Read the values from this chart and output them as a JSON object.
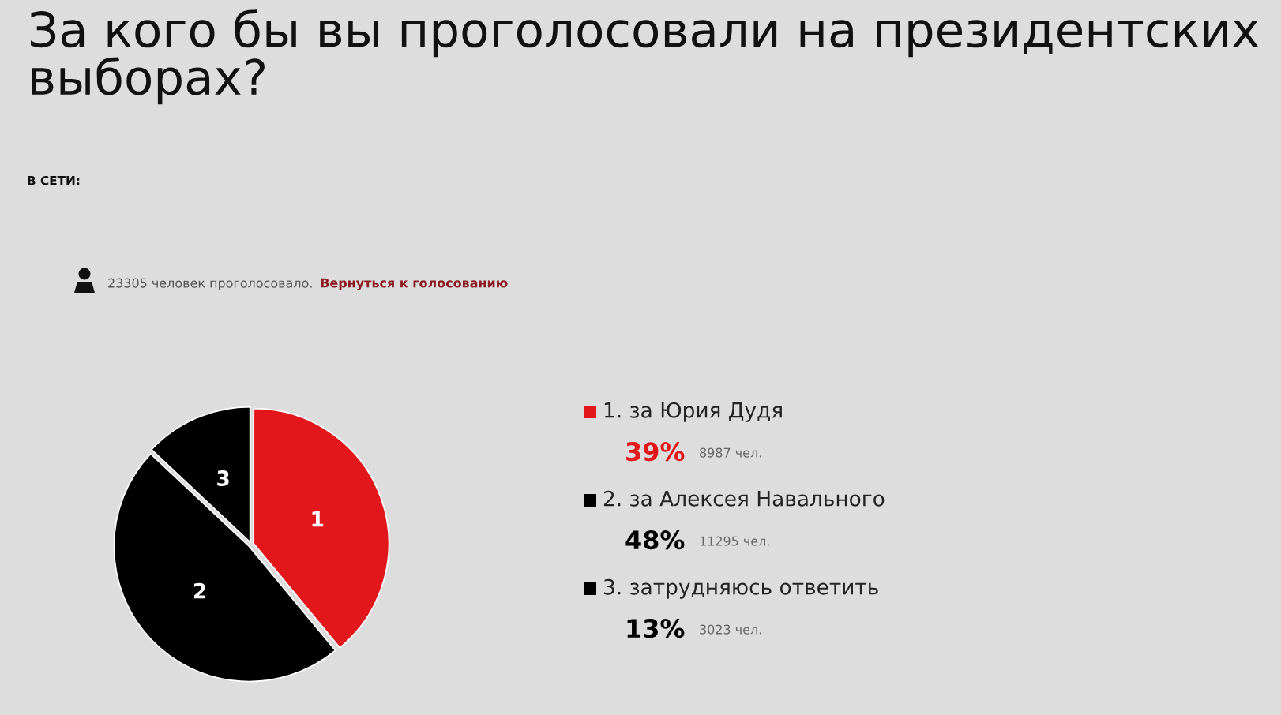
{
  "chart_data": {
    "type": "pie",
    "title": "За кого бы вы проголосовали на президентских выборах?",
    "subtitle": "В СЕТИ:",
    "categories": [
      "1. за Юрия Дудя",
      "2. за Алексея Навального",
      "3. затрудняюсь ответить"
    ],
    "values": [
      39,
      48,
      13
    ],
    "value_labels": [
      "39%",
      "48%",
      "13%"
    ],
    "colors": [
      "#e3161b",
      "#000000",
      "#000000"
    ],
    "legend": "right",
    "annotations": [
      "23305 человек проголосовало.",
      "Вернуться к голосованию",
      "1",
      "2",
      "3",
      "8987 чел.",
      "11295 чел.",
      "3023 чел."
    ]
  }
}
